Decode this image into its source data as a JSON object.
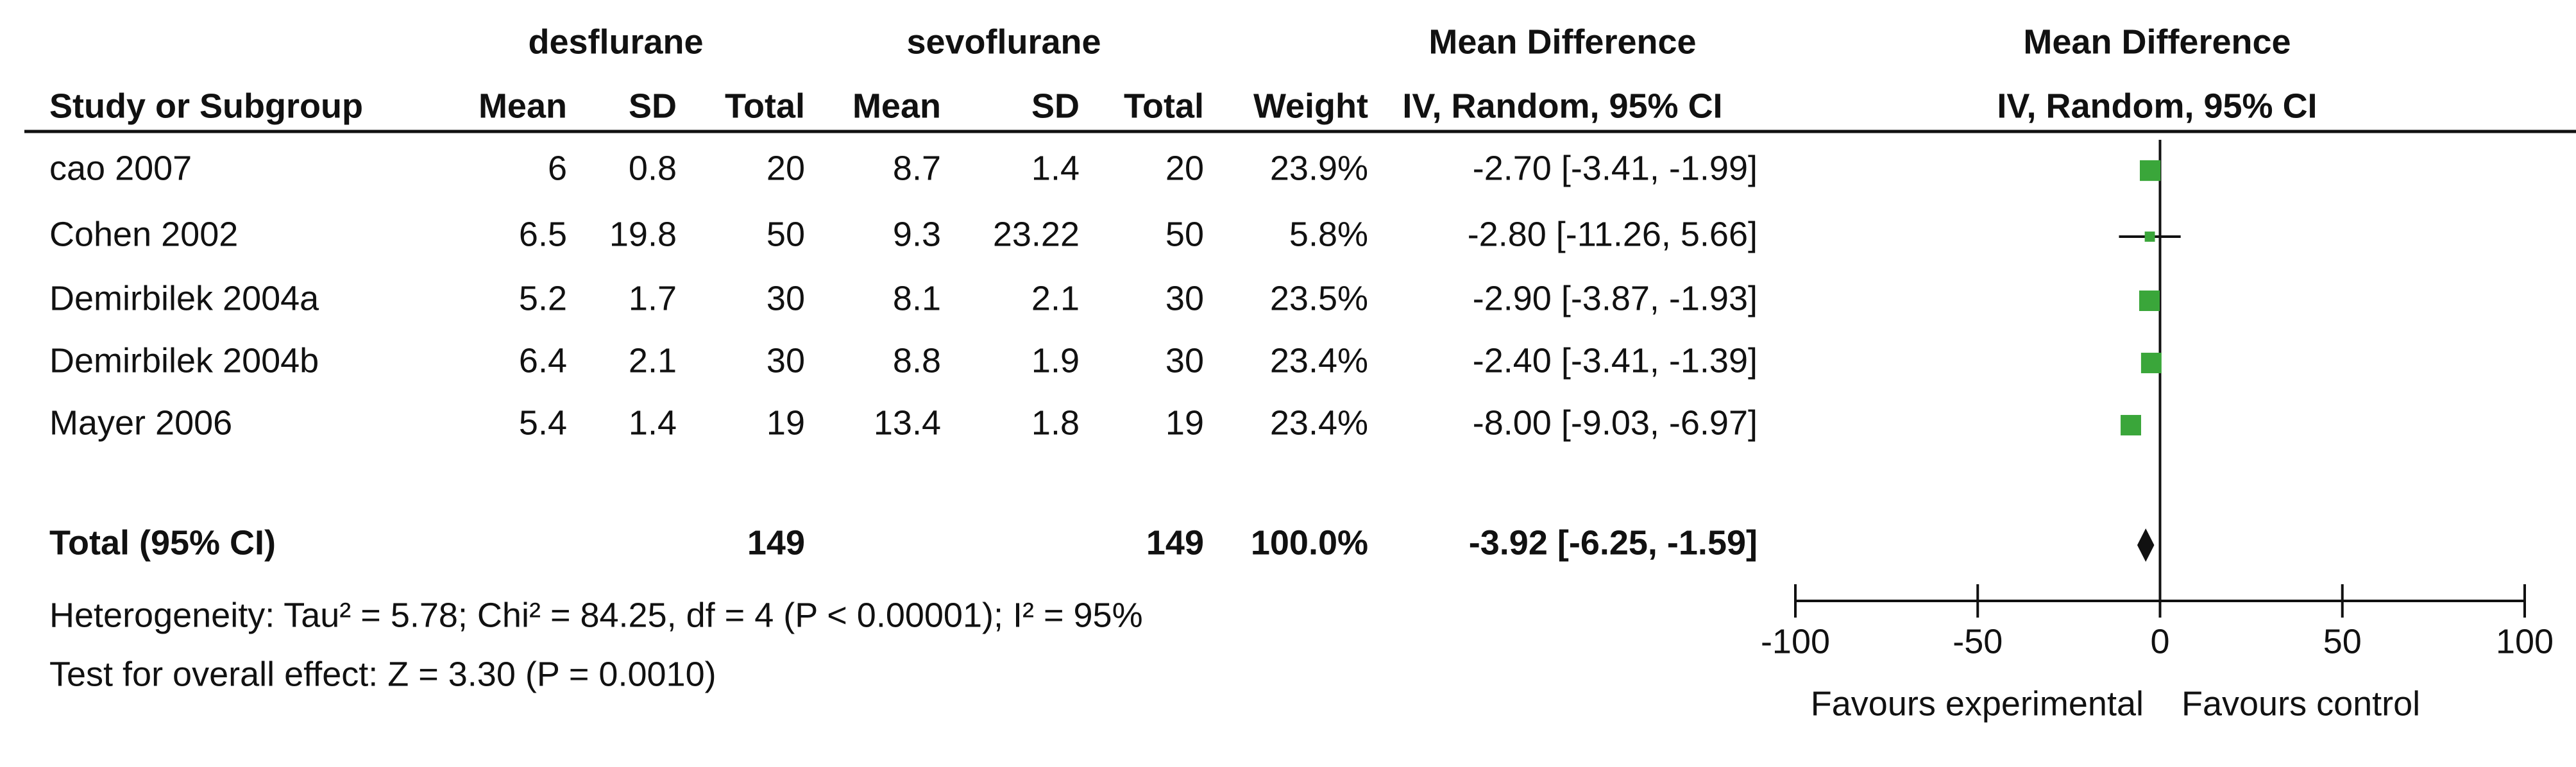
{
  "chart_data": {
    "type": "forest",
    "group_headers": [
      "desflurane",
      "sevoflurane"
    ],
    "effect_header": [
      "Mean Difference",
      "IV, Random, 95% CI"
    ],
    "plot_header": [
      "Mean Difference",
      "IV, Random, 95% CI"
    ],
    "columns": [
      "Study or Subgroup",
      "Mean",
      "SD",
      "Total",
      "Mean",
      "SD",
      "Total",
      "Weight"
    ],
    "studies": [
      {
        "study": "cao 2007",
        "exp_mean": 6,
        "exp_sd": 0.8,
        "exp_total": 20,
        "ctl_mean": 8.7,
        "ctl_sd": 1.4,
        "ctl_total": 20,
        "weight": 23.9,
        "weight_label": "23.9%",
        "md": -2.7,
        "ci": [
          -3.41,
          -1.99
        ],
        "md_label": "-2.70 [-3.41, -1.99]"
      },
      {
        "study": "Cohen 2002",
        "exp_mean": 6.5,
        "exp_sd": 19.8,
        "exp_total": 50,
        "ctl_mean": 9.3,
        "ctl_sd": 23.22,
        "ctl_total": 50,
        "weight": 5.8,
        "weight_label": "5.8%",
        "md": -2.8,
        "ci": [
          -11.26,
          5.66
        ],
        "md_label": "-2.80 [-11.26, 5.66]"
      },
      {
        "study": "Demirbilek 2004a",
        "exp_mean": 5.2,
        "exp_sd": 1.7,
        "exp_total": 30,
        "ctl_mean": 8.1,
        "ctl_sd": 2.1,
        "ctl_total": 30,
        "weight": 23.5,
        "weight_label": "23.5%",
        "md": -2.9,
        "ci": [
          -3.87,
          -1.93
        ],
        "md_label": "-2.90 [-3.87, -1.93]"
      },
      {
        "study": "Demirbilek 2004b",
        "exp_mean": 6.4,
        "exp_sd": 2.1,
        "exp_total": 30,
        "ctl_mean": 8.8,
        "ctl_sd": 1.9,
        "ctl_total": 30,
        "weight": 23.4,
        "weight_label": "23.4%",
        "md": -2.4,
        "ci": [
          -3.41,
          -1.39
        ],
        "md_label": "-2.40 [-3.41, -1.39]"
      },
      {
        "study": "Mayer 2006",
        "exp_mean": 5.4,
        "exp_sd": 1.4,
        "exp_total": 19,
        "ctl_mean": 13.4,
        "ctl_sd": 1.8,
        "ctl_total": 19,
        "weight": 23.4,
        "weight_label": "23.4%",
        "md": -8.0,
        "ci": [
          -9.03,
          -6.97
        ],
        "md_label": "-8.00 [-9.03, -6.97]"
      }
    ],
    "total": {
      "label": "Total (95% CI)",
      "exp_total": 149,
      "ctl_total": 149,
      "weight": 100,
      "weight_label": "100.0%",
      "md": -3.92,
      "ci": [
        -6.25,
        -1.59
      ],
      "md_label": "-3.92 [-6.25, -1.59]"
    },
    "heterogeneity": "Heterogeneity: Tau² = 5.78; Chi² = 84.25, df = 4 (P < 0.00001); I² = 95%",
    "overall_effect": "Test for overall effect: Z = 3.30 (P = 0.0010)",
    "xlim": [
      -100,
      100
    ],
    "xticks": [
      -100,
      -50,
      0,
      50,
      100
    ],
    "xlabel_left": "Favours experimental",
    "xlabel_right": "Favours control",
    "color": "#3aa63a"
  }
}
